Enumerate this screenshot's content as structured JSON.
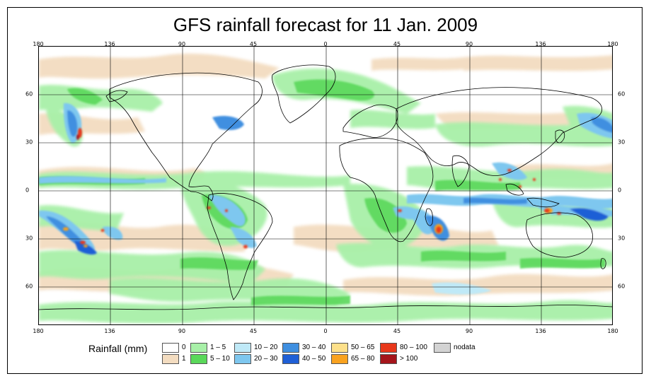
{
  "title": "GFS rainfall forecast for 11 Jan. 2009",
  "axes": {
    "lon_ticks": [
      "180",
      "136",
      "90",
      "45",
      "0",
      "45",
      "90",
      "136",
      "180"
    ],
    "lat_ticks": [
      "60",
      "30",
      "0",
      "30",
      "60"
    ]
  },
  "legend": {
    "title": "Rainfall (mm)",
    "items": [
      {
        "label": "0",
        "color": "#ffffff"
      },
      {
        "label": "1",
        "color": "#f3dcc0"
      },
      {
        "label": "1 – 5",
        "color": "#a8f0a8"
      },
      {
        "label": "5 – 10",
        "color": "#5ad85a"
      },
      {
        "label": "10 – 20",
        "color": "#bfe9f7"
      },
      {
        "label": "20 – 30",
        "color": "#7ec7ef"
      },
      {
        "label": "30 – 40",
        "color": "#3f8fe0"
      },
      {
        "label": "40 – 50",
        "color": "#1f5fd6"
      },
      {
        "label": "50 – 65",
        "color": "#fde08a"
      },
      {
        "label": "65 – 80",
        "color": "#f9a21f"
      },
      {
        "label": "80 – 100",
        "color": "#e8381b"
      },
      {
        "label": "> 100",
        "color": "#a5151b"
      },
      {
        "label": "nodata",
        "color": "#d3d3d3"
      }
    ]
  },
  "colors": {
    "land_outline": "#000000",
    "grid": "#000000"
  }
}
